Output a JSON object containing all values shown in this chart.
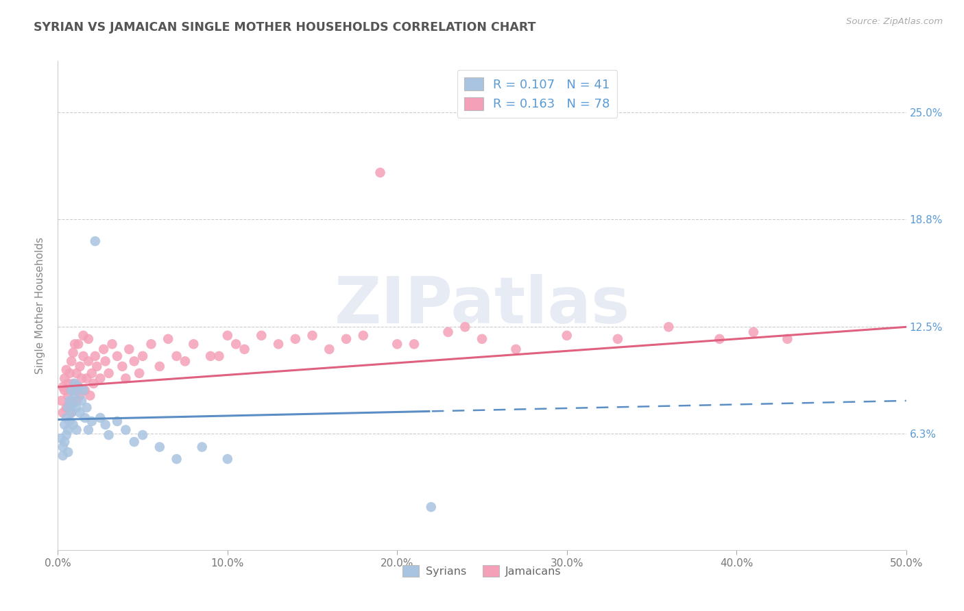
{
  "title": "SYRIAN VS JAMAICAN SINGLE MOTHER HOUSEHOLDS CORRELATION CHART",
  "source": "Source: ZipAtlas.com",
  "ylabel": "Single Mother Households",
  "ytick_labels": [
    "6.3%",
    "12.5%",
    "18.8%",
    "25.0%"
  ],
  "ytick_values": [
    0.063,
    0.125,
    0.188,
    0.25
  ],
  "xtick_labels": [
    "0.0%",
    "10.0%",
    "20.0%",
    "30.0%",
    "40.0%",
    "50.0%"
  ],
  "xtick_values": [
    0.0,
    0.1,
    0.2,
    0.3,
    0.4,
    0.5
  ],
  "syrian_R": 0.107,
  "syrian_N": 41,
  "jamaican_R": 0.163,
  "jamaican_N": 78,
  "syrian_color": "#a8c4e0",
  "jamaican_color": "#f4a0b8",
  "syrian_line_color": "#5b8ec4",
  "jamaican_line_color": "#e06080",
  "watermark_text": "ZIPatlas",
  "axis_label_color": "#5b9bd5",
  "title_color": "#555555",
  "syrian_line_intercept": 0.071,
  "syrian_line_slope": 0.022,
  "syrian_line_solid_end": 0.22,
  "jamaican_line_intercept": 0.09,
  "jamaican_line_slope": 0.07,
  "jamaican_line_solid_end": 0.5,
  "syrian_x": [
    0.002,
    0.003,
    0.003,
    0.004,
    0.004,
    0.005,
    0.005,
    0.006,
    0.006,
    0.006,
    0.007,
    0.007,
    0.008,
    0.008,
    0.009,
    0.009,
    0.01,
    0.01,
    0.011,
    0.011,
    0.012,
    0.013,
    0.014,
    0.015,
    0.016,
    0.017,
    0.018,
    0.02,
    0.022,
    0.025,
    0.028,
    0.03,
    0.035,
    0.04,
    0.045,
    0.05,
    0.06,
    0.07,
    0.085,
    0.1,
    0.22
  ],
  "syrian_y": [
    0.06,
    0.055,
    0.05,
    0.068,
    0.058,
    0.072,
    0.062,
    0.078,
    0.065,
    0.052,
    0.082,
    0.07,
    0.088,
    0.075,
    0.08,
    0.068,
    0.085,
    0.092,
    0.078,
    0.065,
    0.09,
    0.075,
    0.082,
    0.088,
    0.072,
    0.078,
    0.065,
    0.07,
    0.175,
    0.072,
    0.068,
    0.062,
    0.07,
    0.065,
    0.058,
    0.062,
    0.055,
    0.048,
    0.055,
    0.048,
    0.02
  ],
  "jamaican_x": [
    0.002,
    0.003,
    0.003,
    0.004,
    0.004,
    0.005,
    0.005,
    0.006,
    0.006,
    0.007,
    0.007,
    0.008,
    0.008,
    0.009,
    0.009,
    0.01,
    0.01,
    0.011,
    0.011,
    0.012,
    0.012,
    0.013,
    0.013,
    0.014,
    0.015,
    0.015,
    0.016,
    0.017,
    0.018,
    0.018,
    0.019,
    0.02,
    0.021,
    0.022,
    0.023,
    0.025,
    0.027,
    0.028,
    0.03,
    0.032,
    0.035,
    0.038,
    0.04,
    0.042,
    0.045,
    0.048,
    0.05,
    0.055,
    0.06,
    0.065,
    0.07,
    0.075,
    0.08,
    0.09,
    0.1,
    0.11,
    0.13,
    0.15,
    0.17,
    0.19,
    0.21,
    0.23,
    0.25,
    0.27,
    0.3,
    0.33,
    0.36,
    0.39,
    0.41,
    0.43,
    0.095,
    0.105,
    0.12,
    0.14,
    0.16,
    0.18,
    0.2,
    0.24
  ],
  "jamaican_y": [
    0.082,
    0.09,
    0.075,
    0.088,
    0.095,
    0.078,
    0.1,
    0.085,
    0.092,
    0.098,
    0.08,
    0.105,
    0.075,
    0.092,
    0.11,
    0.088,
    0.115,
    0.082,
    0.098,
    0.09,
    0.115,
    0.085,
    0.102,
    0.095,
    0.108,
    0.12,
    0.088,
    0.095,
    0.105,
    0.118,
    0.085,
    0.098,
    0.092,
    0.108,
    0.102,
    0.095,
    0.112,
    0.105,
    0.098,
    0.115,
    0.108,
    0.102,
    0.095,
    0.112,
    0.105,
    0.098,
    0.108,
    0.115,
    0.102,
    0.118,
    0.108,
    0.105,
    0.115,
    0.108,
    0.12,
    0.112,
    0.115,
    0.12,
    0.118,
    0.215,
    0.115,
    0.122,
    0.118,
    0.112,
    0.12,
    0.118,
    0.125,
    0.118,
    0.122,
    0.118,
    0.108,
    0.115,
    0.12,
    0.118,
    0.112,
    0.12,
    0.115,
    0.125
  ]
}
